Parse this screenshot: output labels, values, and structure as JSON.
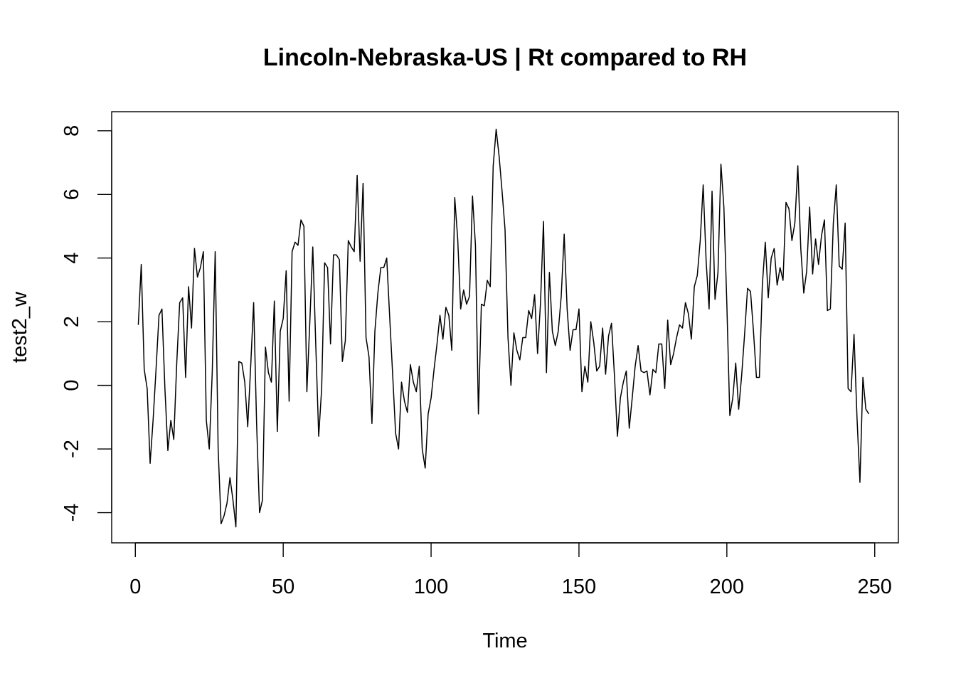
{
  "chart_data": {
    "type": "line",
    "title": "Lincoln-Nebraska-US | Rt compared to RH",
    "xlabel": "Time",
    "ylabel": "test2_w",
    "xlim": [
      -8,
      258
    ],
    "ylim": [
      -4.95,
      8.6
    ],
    "x_ticks": [
      0,
      50,
      100,
      150,
      200,
      250
    ],
    "y_ticks": [
      -4,
      -2,
      0,
      2,
      4,
      6,
      8
    ],
    "grid": false,
    "legend": "none",
    "line_color": "#000000",
    "x_start": 1,
    "series": [
      {
        "values": [
          1.9,
          3.8,
          0.5,
          -0.1,
          -2.45,
          -1.1,
          0.5,
          2.2,
          2.4,
          -0.1,
          -2.05,
          -1.1,
          -1.7,
          0.7,
          2.6,
          2.75,
          0.25,
          3.1,
          1.8,
          4.3,
          3.4,
          3.7,
          4.2,
          -1.1,
          -2.0,
          0.4,
          4.2,
          -2.0,
          -4.35,
          -4.1,
          -3.7,
          -2.9,
          -3.6,
          -4.45,
          0.75,
          0.7,
          0.1,
          -1.3,
          0.6,
          2.6,
          -1.2,
          -4.0,
          -3.6,
          1.2,
          0.4,
          0.1,
          2.65,
          -1.45,
          1.7,
          2.1,
          3.6,
          -0.5,
          4.2,
          4.5,
          4.4,
          5.2,
          5.0,
          -0.2,
          2.0,
          4.35,
          1.3,
          -1.6,
          -0.1,
          3.85,
          3.7,
          1.3,
          4.1,
          4.1,
          3.95,
          0.75,
          1.4,
          4.55,
          4.35,
          4.2,
          6.6,
          3.9,
          6.35,
          1.5,
          0.9,
          -1.2,
          1.7,
          2.9,
          3.7,
          3.7,
          4.0,
          2.15,
          0.35,
          -1.5,
          -2.0,
          0.1,
          -0.5,
          -0.85,
          0.65,
          0.1,
          -0.2,
          0.6,
          -2.0,
          -2.6,
          -0.9,
          -0.4,
          0.5,
          1.3,
          2.2,
          1.45,
          2.45,
          2.2,
          1.1,
          5.9,
          4.6,
          2.4,
          3.0,
          2.55,
          2.8,
          5.95,
          4.4,
          -0.9,
          2.55,
          2.5,
          3.3,
          3.1,
          6.9,
          8.05,
          7.2,
          6.1,
          4.9,
          1.5,
          0.0,
          1.65,
          1.1,
          0.8,
          1.5,
          1.5,
          2.35,
          2.1,
          2.85,
          1.0,
          2.6,
          5.15,
          0.4,
          3.55,
          1.7,
          1.25,
          1.7,
          2.8,
          4.75,
          2.4,
          1.1,
          1.75,
          1.75,
          2.4,
          -0.2,
          0.6,
          0.1,
          2.0,
          1.35,
          0.45,
          0.6,
          1.8,
          0.35,
          1.55,
          1.95,
          0.3,
          -1.6,
          -0.4,
          0.1,
          0.45,
          -1.35,
          -0.4,
          0.6,
          1.25,
          0.45,
          0.4,
          0.45,
          -0.3,
          0.5,
          0.4,
          1.3,
          1.3,
          -0.1,
          2.05,
          0.65,
          1.0,
          1.5,
          1.9,
          1.8,
          2.6,
          2.25,
          1.45,
          3.1,
          3.45,
          4.55,
          6.3,
          3.9,
          2.4,
          6.1,
          2.7,
          3.55,
          6.95,
          5.6,
          2.55,
          -0.95,
          -0.4,
          0.7,
          -0.75,
          0.3,
          1.6,
          3.05,
          2.95,
          1.7,
          0.25,
          0.25,
          3.15,
          4.5,
          2.75,
          4.0,
          4.3,
          3.15,
          3.7,
          3.3,
          5.75,
          5.55,
          4.55,
          5.1,
          6.9,
          4.3,
          2.9,
          3.6,
          5.6,
          3.5,
          4.6,
          3.8,
          4.7,
          5.2,
          2.35,
          2.4,
          5.1,
          6.3,
          3.75,
          3.65,
          5.1,
          -0.1,
          -0.2,
          1.6,
          -1.0,
          -3.05,
          0.25,
          -0.75,
          -0.9
        ]
      }
    ]
  }
}
